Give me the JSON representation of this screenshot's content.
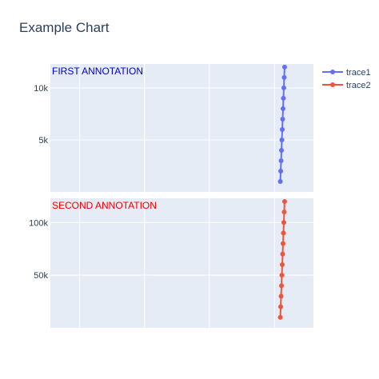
{
  "chart_data": {
    "type": "line",
    "title": "Example Chart",
    "grid": true,
    "legend_position": "top-right",
    "colors": {
      "trace1": "#636efa",
      "trace2": "#ef553b",
      "plot_bg": "#e5ecf6",
      "grid": "#ffffff"
    },
    "subplots": [
      {
        "annotation": {
          "text": "FIRST ANNOTATION",
          "color": "#0000cc"
        },
        "ylim": [
          0,
          12300
        ],
        "ytick_values": [
          5000,
          10000
        ],
        "ytick_labels": [
          "5k",
          "10k"
        ],
        "series": [
          {
            "name": "trace1",
            "x": [
              1.03,
              1.032,
              1.034,
              1.036,
              1.038,
              1.04,
              1.042,
              1.044,
              1.046,
              1.048,
              1.05,
              1.052
            ],
            "y": [
              1000,
              2000,
              3000,
              4000,
              5000,
              6000,
              7000,
              8000,
              9000,
              10000,
              11000,
              12000
            ]
          }
        ]
      },
      {
        "annotation": {
          "text": "SECOND ANNOTATION",
          "color": "#ee0000"
        },
        "ylim": [
          0,
          123000
        ],
        "ytick_values": [
          50000,
          100000
        ],
        "ytick_labels": [
          "50k",
          "100k"
        ],
        "series": [
          {
            "name": "trace2",
            "x": [
              1.03,
              1.032,
              1.034,
              1.036,
              1.038,
              1.04,
              1.042,
              1.044,
              1.046,
              1.048,
              1.05,
              1.052
            ],
            "y": [
              10000,
              20000,
              30000,
              40000,
              50000,
              60000,
              70000,
              80000,
              90000,
              100000,
              110000,
              120000
            ]
          }
        ]
      }
    ],
    "xlim": [
      -0.15,
      1.2
    ],
    "x_gridlines": [
      0,
      0.333,
      0.666,
      1.0
    ]
  }
}
